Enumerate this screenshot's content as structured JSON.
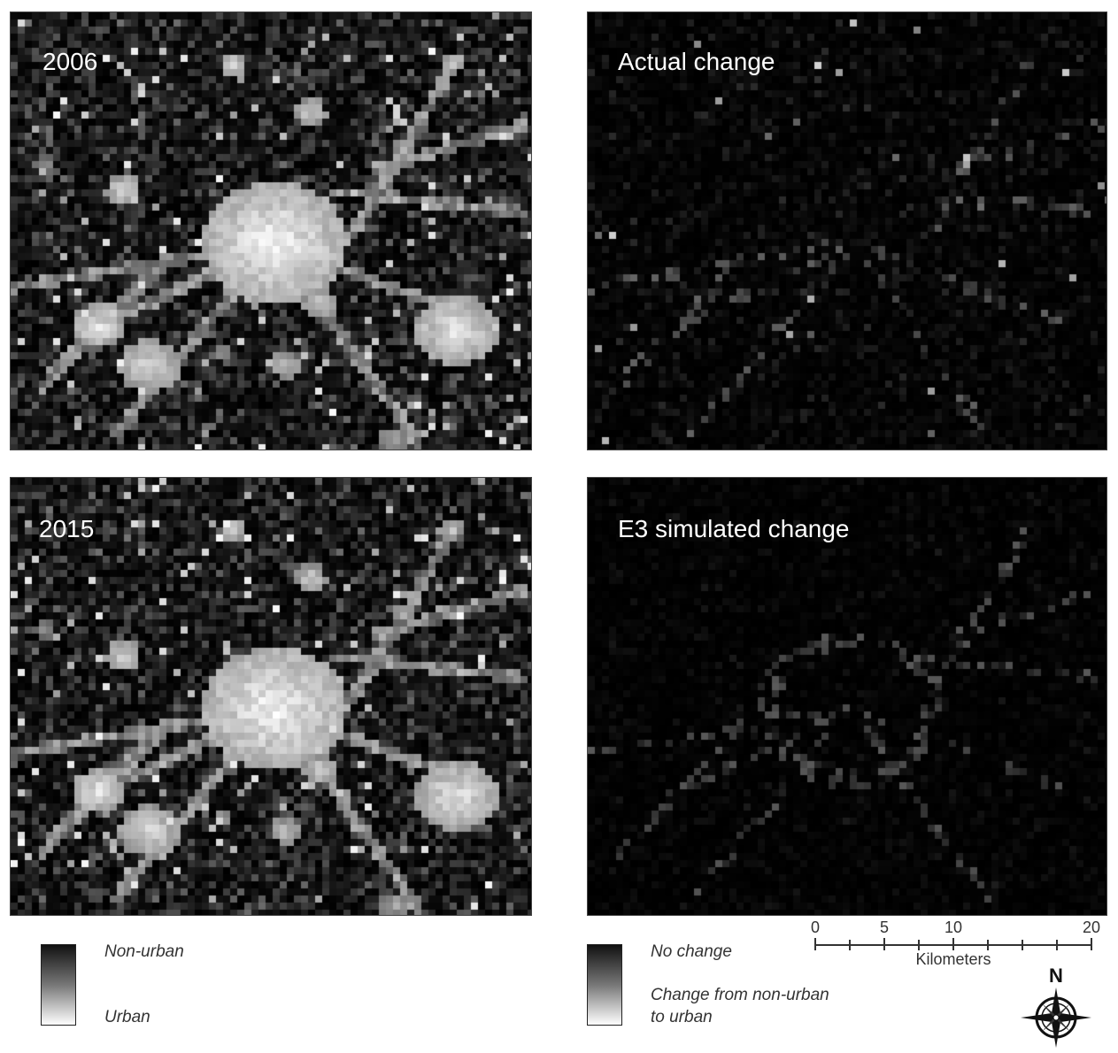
{
  "panels": [
    {
      "title": "2006",
      "kind": "urban"
    },
    {
      "title": "Actual change",
      "kind": "change-actual"
    },
    {
      "title": "2015",
      "kind": "urban"
    },
    {
      "title": "E3 simulated change",
      "kind": "change-simulated"
    }
  ],
  "legend_left": {
    "top_label": "Non-urban",
    "bottom_label": "Urban"
  },
  "legend_right": {
    "top_label": "No change",
    "bottom_label_line1": "Change from non-urban",
    "bottom_label_line2": "to urban"
  },
  "scale_bar": {
    "ticks": [
      "0",
      "5",
      "10",
      "20"
    ],
    "units": "Kilometers"
  },
  "north_arrow": {
    "label": "N",
    "icon": "compass-rose-icon"
  },
  "colors": {
    "background": "#000000",
    "urban": "#ffffff",
    "non_urban": "#000000"
  }
}
